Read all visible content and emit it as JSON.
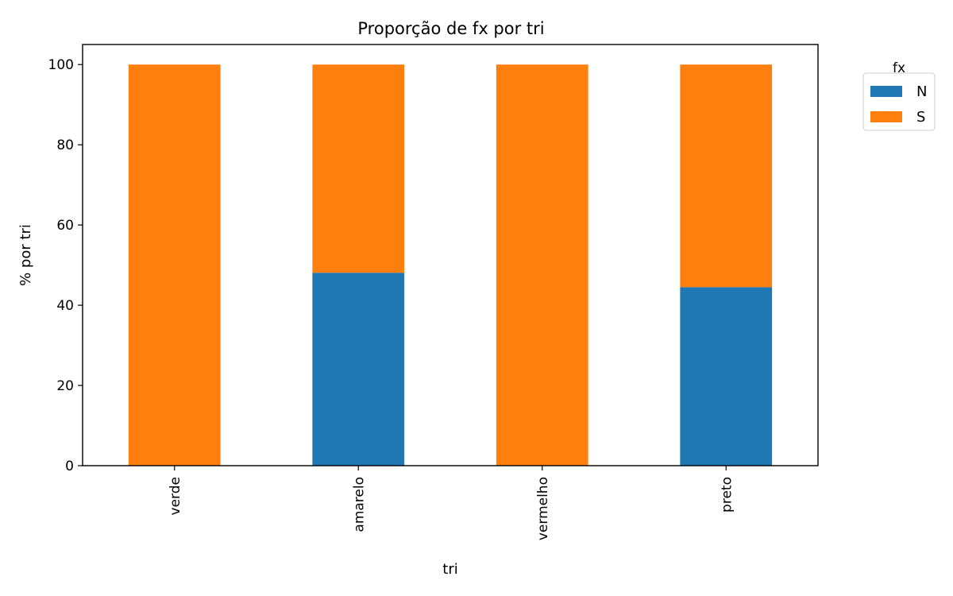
{
  "chart_data": {
    "type": "bar",
    "stacked": true,
    "title": "Proporção de fx por tri",
    "xlabel": "tri",
    "ylabel": "% por tri",
    "categories": [
      "verde",
      "amarelo",
      "vermelho",
      "preto"
    ],
    "series": [
      {
        "name": "N",
        "color": "#1f77b4",
        "values": [
          0,
          48.1,
          0,
          44.5
        ]
      },
      {
        "name": "S",
        "color": "#ff7f0e",
        "values": [
          100,
          51.9,
          100,
          55.5
        ]
      }
    ],
    "ylim": [
      0,
      105
    ],
    "yticks": [
      0,
      20,
      40,
      60,
      80,
      100
    ],
    "grid": false,
    "legend": {
      "title": "fx",
      "placement": "outside-top-right"
    }
  }
}
